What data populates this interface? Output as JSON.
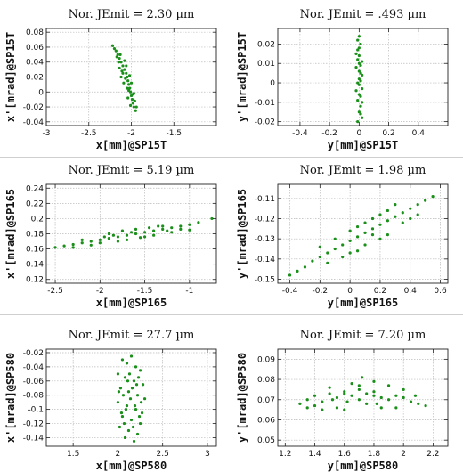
{
  "chart_data": [
    {
      "type": "scatter",
      "title": "Nor. JEmit = 2.30 µm",
      "xlabel": "x[mm]@SP15T",
      "ylabel": "x'[mrad]@SP15T",
      "xlim": [
        -3,
        -1
      ],
      "ylim": [
        -0.045,
        0.085
      ],
      "xticks": [
        -3,
        -2.5,
        -2,
        -1.5
      ],
      "yticks": [
        -0.04,
        -0.02,
        0,
        0.02,
        0.04,
        0.06,
        0.08
      ],
      "xtick_labels": [
        "-3",
        "-2.5",
        "-2",
        "-1.5"
      ],
      "ytick_labels": [
        "-0.04",
        "-0.02",
        "0",
        "0.02",
        "0.04",
        "0.06",
        "0.08"
      ],
      "grid": true,
      "color": "#1a8f1a",
      "points": [
        [
          -2.22,
          0.062
        ],
        [
          -2.18,
          0.055
        ],
        [
          -2.16,
          0.05
        ],
        [
          -2.14,
          0.045
        ],
        [
          -2.12,
          0.04
        ],
        [
          -2.1,
          0.035
        ],
        [
          -2.08,
          0.03
        ],
        [
          -2.06,
          0.025
        ],
        [
          -2.05,
          0.02
        ],
        [
          -2.04,
          0.015
        ],
        [
          -2.03,
          0.01
        ],
        [
          -2.02,
          0.005
        ],
        [
          -2.01,
          0.0
        ],
        [
          -2.0,
          -0.005
        ],
        [
          -1.99,
          -0.01
        ],
        [
          -1.98,
          -0.015
        ],
        [
          -1.97,
          -0.02
        ],
        [
          -1.95,
          -0.025
        ],
        [
          -2.15,
          0.04
        ],
        [
          -2.11,
          0.028
        ],
        [
          -2.07,
          0.018
        ],
        [
          -2.03,
          0.002
        ],
        [
          -2.09,
          0.012
        ],
        [
          -1.98,
          -0.003
        ],
        [
          -2.13,
          0.05
        ],
        [
          -2.06,
          0.035
        ],
        [
          -2.2,
          0.058
        ],
        [
          -2.0,
          0.012
        ],
        [
          -2.04,
          -0.008
        ],
        [
          -1.96,
          -0.012
        ],
        [
          -2.12,
          0.02
        ],
        [
          -2.08,
          0.042
        ],
        [
          -2.02,
          0.022
        ],
        [
          -1.94,
          -0.02
        ],
        [
          -2.17,
          0.047
        ],
        [
          -2.05,
          0.005
        ],
        [
          -2.1,
          0.025
        ],
        [
          -1.97,
          -0.002
        ],
        [
          -2.01,
          -0.018
        ],
        [
          -2.14,
          0.032
        ]
      ]
    },
    {
      "type": "scatter",
      "title": "Nor. JEmit = .493 µm",
      "xlabel": "y[mm]@SP15T",
      "ylabel": "y'[mrad]@SP15T",
      "xlim": [
        -0.55,
        0.6
      ],
      "ylim": [
        -0.022,
        0.028
      ],
      "xticks": [
        -0.4,
        -0.2,
        0,
        0.2,
        0.4
      ],
      "yticks": [
        -0.02,
        -0.01,
        0,
        0.01,
        0.02
      ],
      "xtick_labels": [
        "-0.4",
        "-0.2",
        "0",
        "0.2",
        "0.4"
      ],
      "ytick_labels": [
        "-0.02",
        "-0.01",
        "0",
        "0.01",
        "0.02"
      ],
      "grid": true,
      "color": "#1a8f1a",
      "points": [
        [
          0.0,
          0.024
        ],
        [
          0.01,
          0.02
        ],
        [
          -0.01,
          0.017
        ],
        [
          0.0,
          0.014
        ],
        [
          0.02,
          0.011
        ],
        [
          -0.02,
          0.008
        ],
        [
          0.01,
          0.005
        ],
        [
          0.0,
          0.002
        ],
        [
          -0.01,
          0.0
        ],
        [
          0.02,
          -0.003
        ],
        [
          0.0,
          -0.006
        ],
        [
          -0.01,
          -0.009
        ],
        [
          0.01,
          -0.012
        ],
        [
          0.0,
          -0.015
        ],
        [
          0.02,
          -0.018
        ],
        [
          -0.01,
          -0.02
        ],
        [
          0.0,
          0.018
        ],
        [
          0.01,
          0.009
        ],
        [
          -0.02,
          -0.004
        ],
        [
          0.02,
          0.004
        ],
        [
          -0.01,
          0.012
        ],
        [
          0.01,
          -0.016
        ],
        [
          0.0,
          0.006
        ],
        [
          0.02,
          -0.01
        ],
        [
          -0.02,
          0.015
        ],
        [
          0.01,
          0.001
        ],
        [
          0.0,
          -0.001
        ],
        [
          -0.01,
          0.022
        ],
        [
          0.01,
          -0.007
        ],
        [
          0.0,
          0.01
        ]
      ]
    },
    {
      "type": "scatter",
      "title": "Nor. JEmit = 5.19 µm",
      "xlabel": "x[mm]@SP165",
      "ylabel": "x'[mrad]@SP165",
      "xlim": [
        -2.6,
        -0.7
      ],
      "ylim": [
        0.115,
        0.245
      ],
      "xticks": [
        -2.5,
        -2,
        -1.5,
        -1
      ],
      "yticks": [
        0.12,
        0.14,
        0.16,
        0.18,
        0.2,
        0.22,
        0.24
      ],
      "xtick_labels": [
        "-2.5",
        "-2",
        "-1.5",
        "-1"
      ],
      "ytick_labels": [
        "0.12",
        "0.14",
        "0.16",
        "0.18",
        "0.2",
        "0.22",
        "0.24"
      ],
      "grid": true,
      "color": "#1a8f1a",
      "points": [
        [
          -2.5,
          0.162
        ],
        [
          -2.4,
          0.164
        ],
        [
          -2.3,
          0.166
        ],
        [
          -2.2,
          0.168
        ],
        [
          -2.1,
          0.17
        ],
        [
          -2.0,
          0.172
        ],
        [
          -1.9,
          0.174
        ],
        [
          -1.8,
          0.176
        ],
        [
          -1.7,
          0.178
        ],
        [
          -1.6,
          0.18
        ],
        [
          -1.5,
          0.182
        ],
        [
          -1.4,
          0.184
        ],
        [
          -1.3,
          0.186
        ],
        [
          -1.2,
          0.188
        ],
        [
          -1.1,
          0.19
        ],
        [
          -1.0,
          0.192
        ],
        [
          -0.9,
          0.195
        ],
        [
          -0.75,
          0.2
        ],
        [
          -2.0,
          0.168
        ],
        [
          -1.9,
          0.18
        ],
        [
          -1.7,
          0.172
        ],
        [
          -1.6,
          0.186
        ],
        [
          -1.4,
          0.178
        ],
        [
          -1.3,
          0.19
        ],
        [
          -2.2,
          0.172
        ],
        [
          -1.8,
          0.17
        ],
        [
          -1.5,
          0.176
        ],
        [
          -1.2,
          0.182
        ],
        [
          -1.1,
          0.186
        ],
        [
          -1.0,
          0.185
        ],
        [
          -2.3,
          0.162
        ],
        [
          -1.95,
          0.176
        ],
        [
          -1.65,
          0.182
        ],
        [
          -1.35,
          0.19
        ],
        [
          -2.1,
          0.165
        ],
        [
          -1.75,
          0.184
        ],
        [
          -1.45,
          0.188
        ],
        [
          -1.55,
          0.175
        ],
        [
          -1.85,
          0.178
        ],
        [
          -1.25,
          0.184
        ]
      ]
    },
    {
      "type": "scatter",
      "title": "Nor. JEmit = 1.98 µm",
      "xlabel": "y[mm]@SP165",
      "ylabel": "y'[mrad]@SP165",
      "xlim": [
        -0.48,
        0.65
      ],
      "ylim": [
        -0.152,
        -0.103
      ],
      "xticks": [
        -0.4,
        -0.2,
        0,
        0.2,
        0.4,
        0.6
      ],
      "yticks": [
        -0.15,
        -0.14,
        -0.13,
        -0.12,
        -0.11
      ],
      "xtick_labels": [
        "-0.4",
        "-0.2",
        "0",
        "0.2",
        "0.4",
        "0.6"
      ],
      "ytick_labels": [
        "-0.15",
        "-0.14",
        "-0.13",
        "-0.12",
        "-0.11"
      ],
      "grid": true,
      "color": "#1a8f1a",
      "points": [
        [
          -0.4,
          -0.148
        ],
        [
          -0.35,
          -0.146
        ],
        [
          -0.3,
          -0.144
        ],
        [
          -0.25,
          -0.141
        ],
        [
          -0.2,
          -0.139
        ],
        [
          -0.15,
          -0.137
        ],
        [
          -0.1,
          -0.135
        ],
        [
          -0.05,
          -0.133
        ],
        [
          0.0,
          -0.131
        ],
        [
          0.05,
          -0.129
        ],
        [
          0.1,
          -0.127
        ],
        [
          0.15,
          -0.125
        ],
        [
          0.2,
          -0.123
        ],
        [
          0.25,
          -0.121
        ],
        [
          0.3,
          -0.119
        ],
        [
          0.35,
          -0.117
        ],
        [
          0.4,
          -0.115
        ],
        [
          0.45,
          -0.113
        ],
        [
          0.5,
          -0.111
        ],
        [
          0.55,
          -0.109
        ],
        [
          0.0,
          -0.126
        ],
        [
          0.1,
          -0.133
        ],
        [
          0.2,
          -0.118
        ],
        [
          0.05,
          -0.136
        ],
        [
          -0.1,
          -0.13
        ],
        [
          0.25,
          -0.128
        ],
        [
          0.15,
          -0.12
        ],
        [
          -0.05,
          -0.139
        ],
        [
          0.3,
          -0.113
        ],
        [
          0.35,
          -0.122
        ],
        [
          0.1,
          -0.122
        ],
        [
          0.2,
          -0.13
        ],
        [
          -0.15,
          -0.142
        ],
        [
          0.4,
          -0.12
        ],
        [
          0.0,
          -0.137
        ],
        [
          0.15,
          -0.128
        ],
        [
          -0.2,
          -0.134
        ],
        [
          0.45,
          -0.118
        ],
        [
          0.05,
          -0.124
        ],
        [
          0.25,
          -0.116
        ]
      ]
    },
    {
      "type": "scatter",
      "title": "Nor. JEmit = 27.7 µm",
      "xlabel": "x[mm]@SP580",
      "ylabel": "x'[mrad]@SP580",
      "xlim": [
        1.2,
        3.1
      ],
      "ylim": [
        -0.152,
        -0.015
      ],
      "xticks": [
        1.5,
        2,
        2.5,
        3
      ],
      "yticks": [
        -0.14,
        -0.12,
        -0.1,
        -0.08,
        -0.06,
        -0.04,
        -0.02
      ],
      "xtick_labels": [
        "1.5",
        "2",
        "2.5",
        "3"
      ],
      "ytick_labels": [
        "-0.14",
        "-0.12",
        "-0.1",
        "-0.08",
        "-0.06",
        "-0.04",
        "-0.02"
      ],
      "grid": true,
      "color": "#1a8f1a",
      "points": [
        [
          2.05,
          -0.03
        ],
        [
          2.1,
          -0.035
        ],
        [
          2.15,
          -0.025
        ],
        [
          2.2,
          -0.04
        ],
        [
          2.25,
          -0.045
        ],
        [
          2.0,
          -0.05
        ],
        [
          2.08,
          -0.055
        ],
        [
          2.18,
          -0.06
        ],
        [
          2.28,
          -0.065
        ],
        [
          2.03,
          -0.07
        ],
        [
          2.12,
          -0.075
        ],
        [
          2.22,
          -0.08
        ],
        [
          2.3,
          -0.085
        ],
        [
          2.0,
          -0.09
        ],
        [
          2.1,
          -0.095
        ],
        [
          2.2,
          -0.1
        ],
        [
          2.27,
          -0.105
        ],
        [
          2.05,
          -0.11
        ],
        [
          2.15,
          -0.115
        ],
        [
          2.25,
          -0.12
        ],
        [
          2.02,
          -0.125
        ],
        [
          2.12,
          -0.13
        ],
        [
          2.22,
          -0.135
        ],
        [
          2.08,
          -0.14
        ],
        [
          2.18,
          -0.145
        ],
        [
          2.14,
          -0.085
        ],
        [
          2.16,
          -0.07
        ],
        [
          2.11,
          -0.06
        ],
        [
          2.19,
          -0.095
        ],
        [
          2.06,
          -0.08
        ],
        [
          2.24,
          -0.11
        ],
        [
          2.13,
          -0.05
        ],
        [
          2.09,
          -0.1
        ],
        [
          2.21,
          -0.065
        ],
        [
          2.17,
          -0.125
        ],
        [
          2.01,
          -0.075
        ],
        [
          2.26,
          -0.09
        ],
        [
          2.04,
          -0.105
        ],
        [
          2.23,
          -0.055
        ],
        [
          2.07,
          -0.12
        ]
      ]
    },
    {
      "type": "scatter",
      "title": "Nor. JEmit = 7.20 µm",
      "xlabel": "y[mm]@SP580",
      "ylabel": "y'[mrad]@SP580",
      "xlim": [
        1.15,
        2.3
      ],
      "ylim": [
        0.047,
        0.095
      ],
      "xticks": [
        1.2,
        1.4,
        1.6,
        1.8,
        2,
        2.2
      ],
      "yticks": [
        0.05,
        0.06,
        0.07,
        0.08,
        0.09
      ],
      "xtick_labels": [
        "1.2",
        "1.4",
        "1.6",
        "1.8",
        "2",
        "2.2"
      ],
      "ytick_labels": [
        "0.05",
        "0.06",
        "0.07",
        "0.08",
        "0.09"
      ],
      "grid": true,
      "color": "#1a8f1a",
      "points": [
        [
          1.3,
          0.068
        ],
        [
          1.35,
          0.07
        ],
        [
          1.4,
          0.072
        ],
        [
          1.45,
          0.069
        ],
        [
          1.5,
          0.073
        ],
        [
          1.55,
          0.071
        ],
        [
          1.6,
          0.074
        ],
        [
          1.65,
          0.072
        ],
        [
          1.7,
          0.075
        ],
        [
          1.75,
          0.073
        ],
        [
          1.8,
          0.072
        ],
        [
          1.85,
          0.071
        ],
        [
          1.9,
          0.07
        ],
        [
          1.95,
          0.072
        ],
        [
          2.0,
          0.071
        ],
        [
          2.05,
          0.069
        ],
        [
          2.1,
          0.068
        ],
        [
          2.15,
          0.067
        ],
        [
          1.55,
          0.066
        ],
        [
          1.6,
          0.065
        ],
        [
          1.65,
          0.078
        ],
        [
          1.7,
          0.077
        ],
        [
          1.75,
          0.068
        ],
        [
          1.8,
          0.079
        ],
        [
          1.85,
          0.066
        ],
        [
          1.5,
          0.076
        ],
        [
          1.45,
          0.065
        ],
        [
          1.9,
          0.077
        ],
        [
          1.4,
          0.067
        ],
        [
          1.95,
          0.066
        ],
        [
          1.7,
          0.07
        ],
        [
          1.6,
          0.073
        ],
        [
          1.8,
          0.074
        ],
        [
          2.0,
          0.075
        ],
        [
          1.35,
          0.066
        ],
        [
          1.72,
          0.081
        ],
        [
          1.62,
          0.069
        ],
        [
          1.82,
          0.068
        ],
        [
          2.08,
          0.072
        ],
        [
          1.52,
          0.07
        ]
      ]
    }
  ]
}
